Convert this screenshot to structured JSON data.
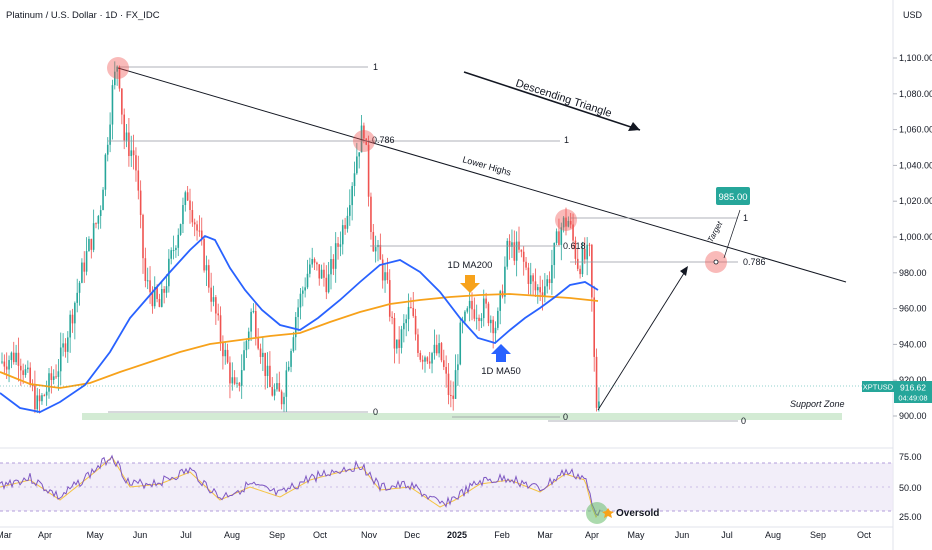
{
  "header": {
    "title": "Platinum / U.S. Dollar · 1D · FX_IDC",
    "currency": "USD"
  },
  "chart_data": {
    "type": "candlestick",
    "symbol": "XPTUSD",
    "last_price": "916.62",
    "countdown": "04:49:08",
    "y_axis_ticks": [
      "1,100.00",
      "1,080.00",
      "1,060.00",
      "1,040.00",
      "1,020.00",
      "1,000.00",
      "980.00",
      "960.00",
      "940.00",
      "920.00",
      "900.00"
    ],
    "x_axis_ticks": [
      "Mar",
      "Apr",
      "May",
      "Jun",
      "Jul",
      "Aug",
      "Sep",
      "Oct",
      "Nov",
      "Dec",
      "2025",
      "Feb",
      "Mar",
      "Apr",
      "May",
      "Jun",
      "Jul",
      "Aug",
      "Sep",
      "Oct"
    ],
    "ylim": [
      880,
      1120
    ],
    "rsi_ticks": [
      "75.00",
      "50.00",
      "25.00"
    ],
    "annotations": {
      "descending_triangle": "Descending Triangle",
      "lower_highs": "Lower Highs",
      "ma200": "1D MA200",
      "ma50": "1D MA50",
      "support_zone": "Support Zone",
      "target": "Target",
      "target_price": "985.00",
      "oversold": "Oversold"
    },
    "fib_labels": {
      "a_top": "1",
      "a_bottom": "0",
      "b_mid": "0.786",
      "b_top": "1",
      "b_bottom": "0",
      "c_mid": "0.618",
      "c_top": "1",
      "c_786": "0.786",
      "c_bottom": "0"
    },
    "colors": {
      "up": "#26a69a",
      "down": "#ef5350",
      "ma50": "#2962ff",
      "ma200": "#f7a21b",
      "rsi": "#7e57c2",
      "rsi_ma": "#f5c342",
      "support": "#c8e6c9",
      "price_tag": "#26a69a"
    }
  }
}
